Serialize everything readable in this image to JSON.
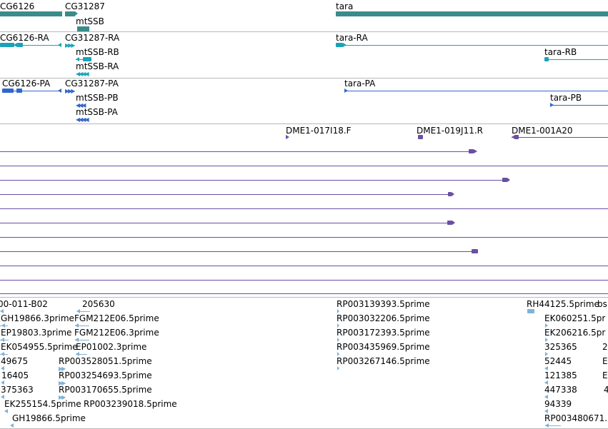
{
  "colors": {
    "gene": "#3a8c8a",
    "mrna": "#1aa3b8",
    "cds": "#3366cc",
    "clone": "#6a4fa3",
    "est": "#7fb2d6",
    "divider": "#b8b8b8"
  },
  "tracks": {
    "genes": {
      "items": [
        {
          "label": "CG6126",
          "icon": "gene-bar"
        },
        {
          "label": "CG31287",
          "icon": "gene-bar"
        },
        {
          "label": "mtSSB",
          "icon": "gene-bar"
        },
        {
          "label": "tara",
          "icon": "gene-bar"
        }
      ]
    },
    "transcripts": {
      "items": [
        {
          "label": "CG6126-RA"
        },
        {
          "label": "CG31287-RA"
        },
        {
          "label": "mtSSB-RB"
        },
        {
          "label": "mtSSB-RA"
        },
        {
          "label": "tara-RA"
        },
        {
          "label": "tara-RB"
        }
      ]
    },
    "proteins": {
      "items": [
        {
          "label": "CG6126-PA"
        },
        {
          "label": "CG31287-PA"
        },
        {
          "label": "mtSSB-PB"
        },
        {
          "label": "mtSSB-PA"
        },
        {
          "label": "tara-PA"
        },
        {
          "label": "tara-PB"
        }
      ]
    },
    "clones": {
      "items": [
        {
          "label": "DME1-017I18.F"
        },
        {
          "label": "DME1-019J11.R"
        },
        {
          "label": "DME1-001A20"
        }
      ]
    },
    "ests": {
      "items": [
        {
          "label": "00-011-B02"
        },
        {
          "label": "205630"
        },
        {
          "label": "GH19866.3prime"
        },
        {
          "label": "FGM212E06.5prime"
        },
        {
          "label": "EP19803.3prime"
        },
        {
          "label": "FGM212E06.3prime"
        },
        {
          "label": "EK054955.5prime"
        },
        {
          "label": "EP01002.3prime"
        },
        {
          "label": "49675"
        },
        {
          "label": "RP003528051.5prime"
        },
        {
          "label": "16405"
        },
        {
          "label": "RP003254693.5prime"
        },
        {
          "label": "375363"
        },
        {
          "label": "RP003170655.5prime"
        },
        {
          "label": "EK255154.5prime"
        },
        {
          "label": "RP003239018.5prime"
        },
        {
          "label": "GH19866.5prime"
        },
        {
          "label": "RP003139393.5prime"
        },
        {
          "label": "RP003032206.5prime"
        },
        {
          "label": "RP003172393.5prime"
        },
        {
          "label": "RP003435969.5prime"
        },
        {
          "label": "RP003267146.5prime"
        },
        {
          "label": "RH44125.5prime"
        },
        {
          "label": "bs"
        },
        {
          "label": "EK060251.5pr"
        },
        {
          "label": "EK206216.5pr"
        },
        {
          "label": "325365"
        },
        {
          "label": "2"
        },
        {
          "label": "52445"
        },
        {
          "label": "E"
        },
        {
          "label": "121385"
        },
        {
          "label": "E"
        },
        {
          "label": "447338"
        },
        {
          "label": "4"
        },
        {
          "label": "94339"
        },
        {
          "label": "RP003480671."
        }
      ]
    }
  }
}
